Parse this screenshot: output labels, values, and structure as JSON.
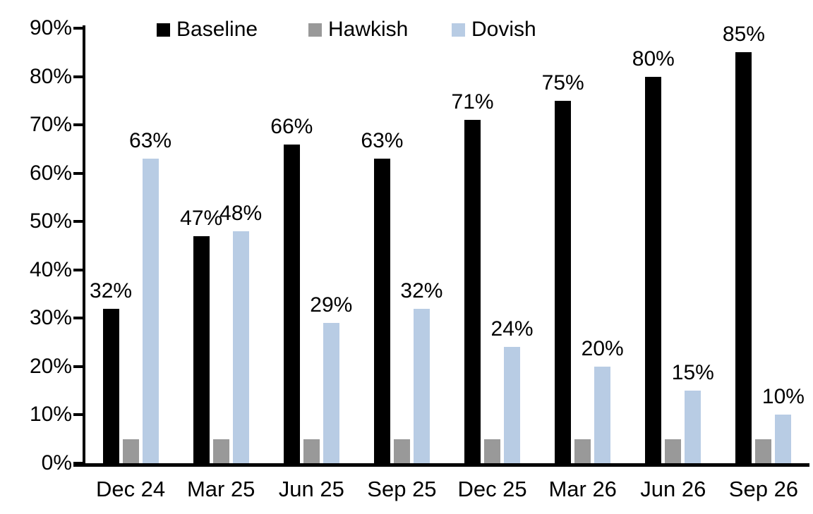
{
  "chart_data": {
    "type": "bar",
    "title": "",
    "xlabel": "",
    "ylabel": "",
    "categories": [
      "Dec 24",
      "Mar 25",
      "Jun 25",
      "Sep 25",
      "Dec 25",
      "Mar 26",
      "Jun 26",
      "Sep 26"
    ],
    "series": [
      {
        "name": "Baseline",
        "color": "#000000",
        "values": [
          32,
          47,
          66,
          63,
          71,
          75,
          80,
          85
        ],
        "data_labels": [
          "32%",
          "47%",
          "66%",
          "63%",
          "71%",
          "75%",
          "80%",
          "85%"
        ]
      },
      {
        "name": "Hawkish",
        "color": "#999999",
        "values": [
          5,
          5,
          5,
          5,
          5,
          5,
          5,
          5
        ],
        "data_labels": null
      },
      {
        "name": "Dovish",
        "color": "#b8cce4",
        "values": [
          63,
          48,
          29,
          32,
          24,
          20,
          15,
          10
        ],
        "data_labels": [
          "63%",
          "48%",
          "29%",
          "32%",
          "24%",
          "20%",
          "15%",
          "10%"
        ]
      }
    ],
    "ylim": [
      0,
      90
    ],
    "ytick_step": 10,
    "ytick_labels": [
      "0%",
      "10%",
      "20%",
      "30%",
      "40%",
      "50%",
      "60%",
      "70%",
      "80%",
      "90%"
    ],
    "grid": false,
    "legend_position": "top",
    "axis_color": "#000000"
  }
}
